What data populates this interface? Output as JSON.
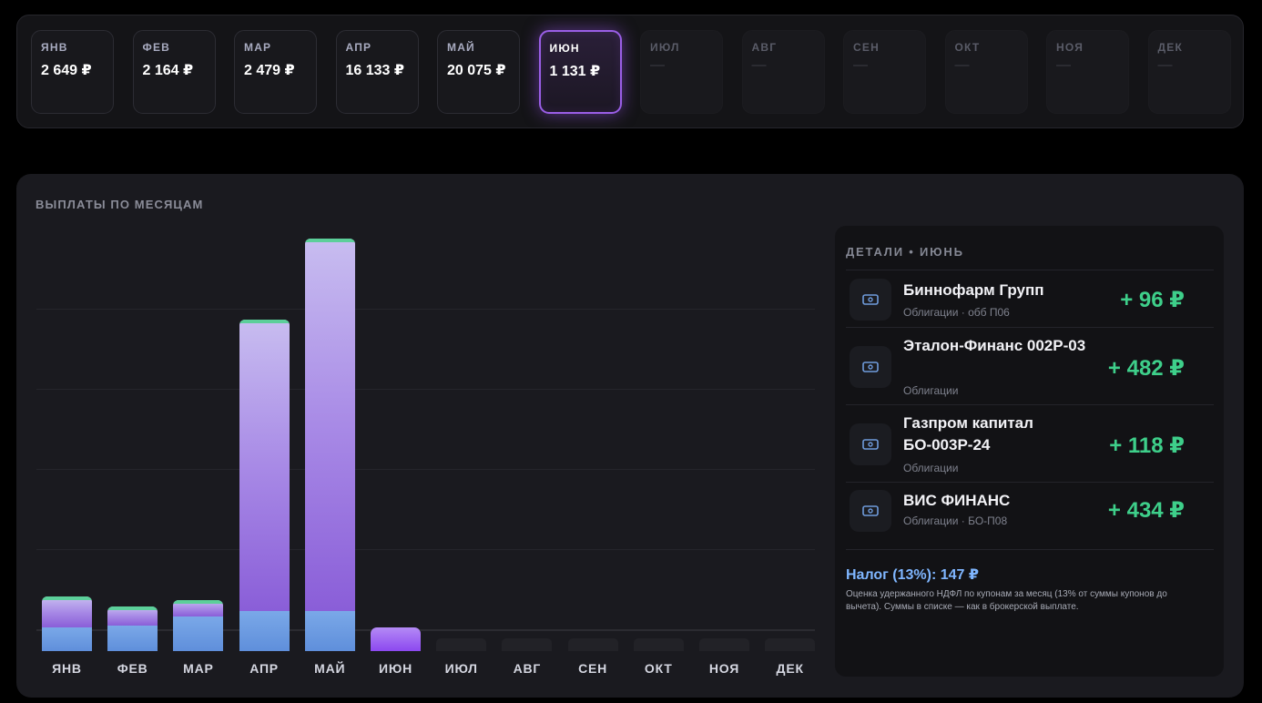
{
  "accent_color": "#9a5ee6",
  "positive_color": "#3ecf8a",
  "months": [
    {
      "label": "ЯНВ",
      "value": "2 649 ₽",
      "state": "filled"
    },
    {
      "label": "ФЕВ",
      "value": "2 164 ₽",
      "state": "filled"
    },
    {
      "label": "МАР",
      "value": "2 479 ₽",
      "state": "filled"
    },
    {
      "label": "АПР",
      "value": "16 133 ₽",
      "state": "filled"
    },
    {
      "label": "МАЙ",
      "value": "20 075 ₽",
      "state": "filled"
    },
    {
      "label": "ИЮН",
      "value": "1 131 ₽",
      "state": "active"
    },
    {
      "label": "ИЮЛ",
      "value": "—",
      "state": "empty"
    },
    {
      "label": "АВГ",
      "value": "—",
      "state": "empty"
    },
    {
      "label": "СЕН",
      "value": "—",
      "state": "empty"
    },
    {
      "label": "ОКТ",
      "value": "—",
      "state": "empty"
    },
    {
      "label": "НОЯ",
      "value": "—",
      "state": "empty"
    },
    {
      "label": "ДЕК",
      "value": "—",
      "state": "empty"
    }
  ],
  "panel": {
    "title": "ВЫПЛАТЫ ПО МЕСЯЦАМ"
  },
  "chart_data": {
    "type": "bar",
    "stacked": true,
    "categories": [
      "ЯНВ",
      "ФЕВ",
      "МАР",
      "АПР",
      "МАЙ",
      "ИЮН",
      "ИЮЛ",
      "АВГ",
      "СЕН",
      "ОКТ",
      "НОЯ",
      "ДЕК"
    ],
    "totals": [
      2649,
      2164,
      2479,
      16133,
      20075,
      1131,
      0,
      0,
      0,
      0,
      0,
      0
    ],
    "lower_segment": [
      1150,
      1230,
      1700,
      1950,
      1950,
      0,
      0,
      0,
      0,
      0,
      0,
      0
    ],
    "ylim": [
      0,
      20500
    ],
    "grid": true,
    "active_category": "ИЮН"
  },
  "details": {
    "title": "ДЕТАЛИ • ИЮНЬ",
    "items": [
      {
        "name": "Биннофарм Групп",
        "sub": "Облигации · обб П06",
        "amount": "+ 96 ₽",
        "icon": "banknote-icon"
      },
      {
        "name": "Эталон-Финанс 002Р-03",
        "sub": "Облигации",
        "amount": "+ 482 ₽",
        "icon": "banknote-icon"
      },
      {
        "name": "Газпром капитал БО-003Р-24",
        "sub": "Облигации",
        "amount": "+ 118 ₽",
        "icon": "banknote-icon"
      },
      {
        "name": "ВИС ФИНАНС",
        "sub": "Облигации · БО-П08",
        "amount": "+ 434 ₽",
        "icon": "banknote-icon"
      }
    ],
    "tax": "Налог (13%): 147 ₽",
    "tax_note": "Оценка удержанного НДФЛ по купонам за месяц (13% от суммы купонов до вычета). Суммы в списке — как в брокерской выплате."
  }
}
